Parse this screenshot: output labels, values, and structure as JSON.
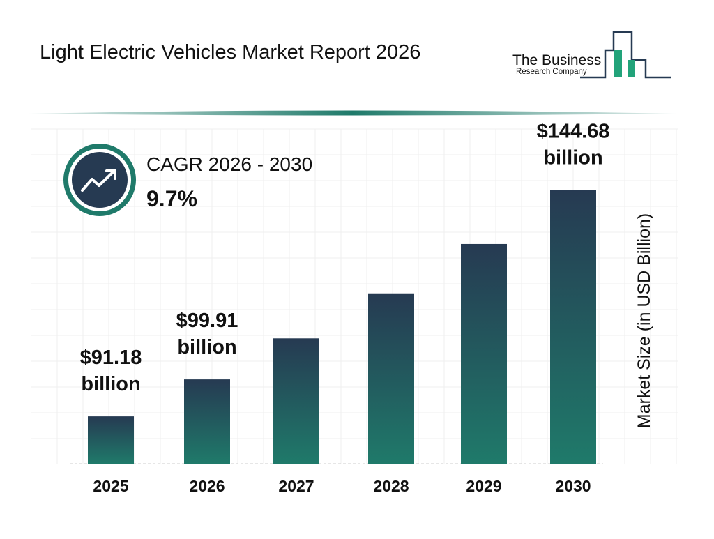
{
  "chart_data": {
    "type": "bar",
    "title": "Light Electric Vehicles Market Report 2026",
    "categories": [
      "2025",
      "2026",
      "2027",
      "2028",
      "2029",
      "2030"
    ],
    "values": [
      91.18,
      99.91,
      109.6,
      120.23,
      131.89,
      144.68
    ],
    "value_labels": [
      "$91.18 billion",
      "$99.91 billion",
      null,
      null,
      null,
      "$144.68 billion"
    ],
    "ylim": [
      80,
      150
    ],
    "y_label": "Market Size (in USD Billion)",
    "color_top": "#263a52",
    "color_bottom": "#1f7a6a",
    "cagr_label": "CAGR 2026 - 2030",
    "cagr_value": "9.7%"
  },
  "logo": {
    "line1": "The Business",
    "line2": "Research Company"
  }
}
